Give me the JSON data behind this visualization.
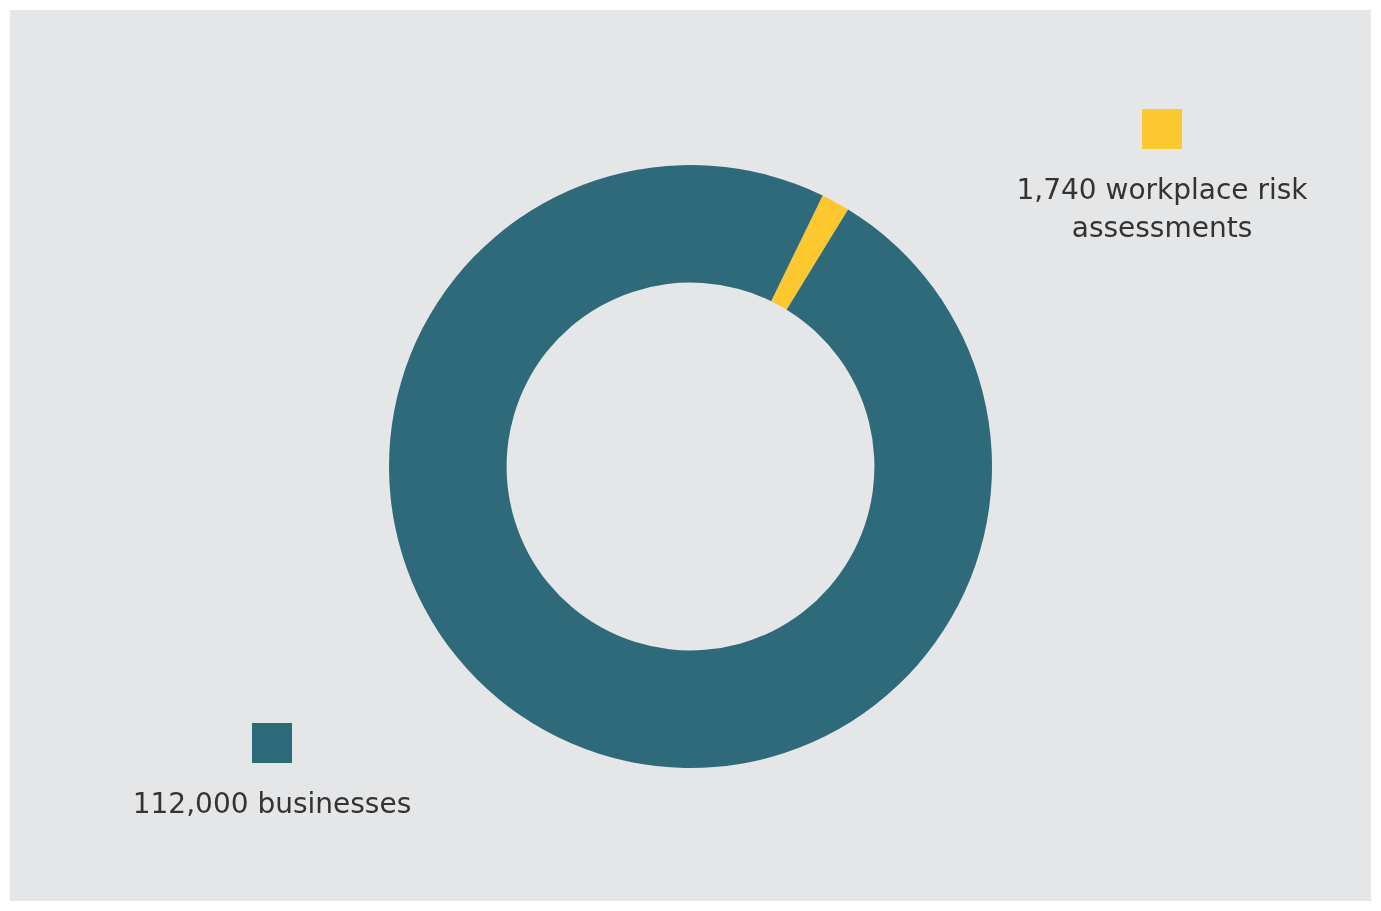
{
  "chart_data": {
    "type": "donut",
    "categories": [
      "1,740 workplace risk assessments",
      "112,000 businesses"
    ],
    "values": [
      1740,
      112000
    ],
    "colors": [
      "#fdc82f",
      "#2f6a7b"
    ],
    "legend": "top right"
  }
}
